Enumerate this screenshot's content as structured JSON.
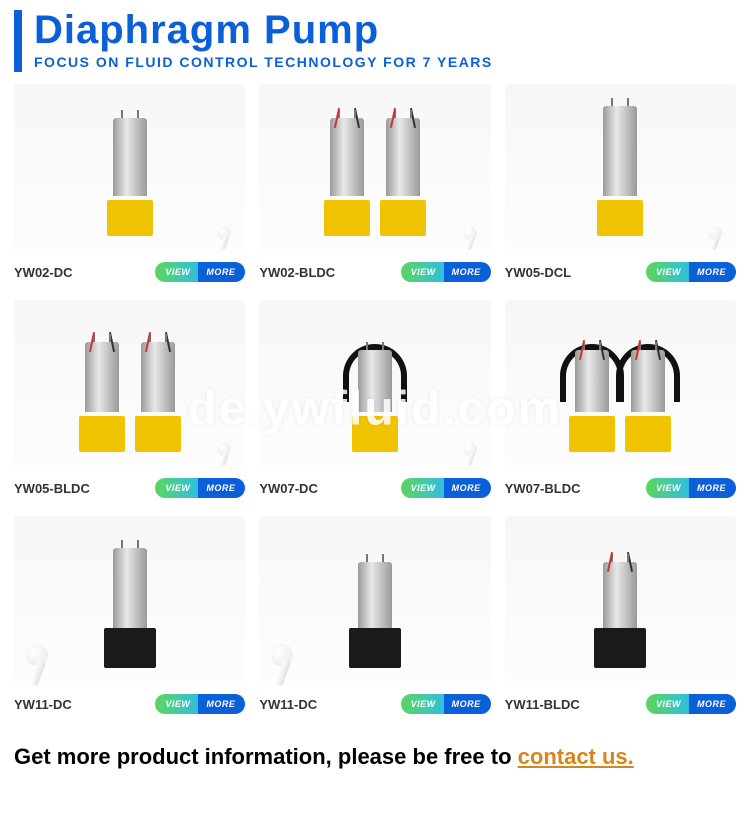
{
  "header": {
    "title": "Diaphragm Pump",
    "subtitle": "FOCUS ON FLUID CONTROL TECHNOLOGY FOR 7 YEARS",
    "bar_color": "#0b5fd8",
    "title_color": "#0b5fd8"
  },
  "view_more": {
    "left_label": "VIEW",
    "right_label": "MORE",
    "left_gradient_from": "#5cd65c",
    "left_gradient_to": "#2fbfe0",
    "right_bg": "#0b5fd8"
  },
  "products": [
    {
      "model": "YW02-DC",
      "base": "yellow",
      "motors": 1,
      "motor_h": 78,
      "handle": null,
      "earbud": "small",
      "wires": false
    },
    {
      "model": "YW02-BLDC",
      "base": "yellow",
      "motors": 2,
      "motor_h": 78,
      "handle": null,
      "earbud": "small",
      "wires": true
    },
    {
      "model": "YW05-DCL",
      "base": "yellow",
      "motors": 1,
      "motor_h": 90,
      "handle": null,
      "earbud": "small",
      "wires": false
    },
    {
      "model": "YW05-BLDC",
      "base": "yellow",
      "motors": 2,
      "motor_h": 70,
      "handle": null,
      "earbud": "small",
      "wires": true
    },
    {
      "model": "YW07-DC",
      "base": "yellow",
      "motors": 1,
      "motor_h": 62,
      "handle": "black",
      "earbud": "small",
      "wires": false
    },
    {
      "model": "YW07-BLDC",
      "base": "yellow",
      "motors": 2,
      "motor_h": 62,
      "handle": "black",
      "earbud": null,
      "wires": true
    },
    {
      "model": "YW11-DC",
      "base": "black",
      "motors": 1,
      "motor_h": 80,
      "handle": null,
      "earbud": "big",
      "wires": false
    },
    {
      "model": "YW11-DC",
      "base": "black",
      "motors": 1,
      "motor_h": 66,
      "handle": null,
      "earbud": "big",
      "wires": false
    },
    {
      "model": "YW11-BLDC",
      "base": "black",
      "motors": 1,
      "motor_h": 66,
      "handle": null,
      "earbud": null,
      "wires": true
    }
  ],
  "footer": {
    "prefix": "Get more product information, please be free to ",
    "link_text": "contact us.",
    "link_color": "#d8861a"
  },
  "watermark": "de.ywfluid.com"
}
